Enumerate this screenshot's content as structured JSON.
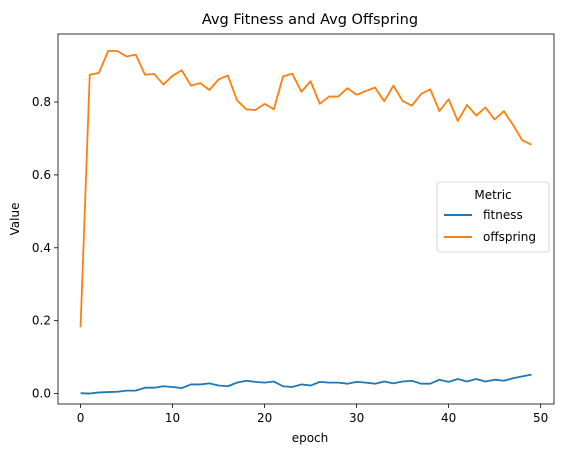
{
  "chart_data": {
    "type": "line",
    "title": "Avg Fitness and Avg Offspring",
    "xlabel": "epoch",
    "ylabel": "Value",
    "xlim": [
      -2.45,
      51.45
    ],
    "ylim": [
      -0.0287,
      0.9867
    ],
    "xticks": [
      0,
      10,
      20,
      30,
      40,
      50
    ],
    "yticks": [
      0.0,
      0.2,
      0.4,
      0.6,
      0.8
    ],
    "ytick_labels": [
      "0.0",
      "0.2",
      "0.4",
      "0.6",
      "0.8"
    ],
    "grid": false,
    "legend": {
      "title": "Metric",
      "placement": "center-right"
    },
    "x": [
      0,
      1,
      2,
      3,
      4,
      5,
      6,
      7,
      8,
      9,
      10,
      11,
      12,
      13,
      14,
      15,
      16,
      17,
      18,
      19,
      20,
      21,
      22,
      23,
      24,
      25,
      26,
      27,
      28,
      29,
      30,
      31,
      32,
      33,
      34,
      35,
      36,
      37,
      38,
      39,
      40,
      41,
      42,
      43,
      44,
      45,
      46,
      47,
      48,
      49
    ],
    "series": [
      {
        "name": "fitness",
        "color": "#1f77b4",
        "values": [
          0.001,
          0.0,
          0.003,
          0.004,
          0.005,
          0.008,
          0.008,
          0.016,
          0.016,
          0.02,
          0.018,
          0.015,
          0.025,
          0.025,
          0.028,
          0.022,
          0.02,
          0.03,
          0.035,
          0.032,
          0.03,
          0.033,
          0.02,
          0.018,
          0.025,
          0.022,
          0.032,
          0.03,
          0.03,
          0.027,
          0.032,
          0.03,
          0.027,
          0.033,
          0.028,
          0.033,
          0.035,
          0.027,
          0.027,
          0.038,
          0.032,
          0.04,
          0.033,
          0.04,
          0.033,
          0.038,
          0.035,
          0.042,
          0.047,
          0.052
        ]
      },
      {
        "name": "offspring",
        "color": "#ff7f0e",
        "values": [
          0.182,
          0.875,
          0.88,
          0.94,
          0.94,
          0.925,
          0.93,
          0.875,
          0.877,
          0.848,
          0.872,
          0.887,
          0.845,
          0.852,
          0.833,
          0.862,
          0.873,
          0.805,
          0.78,
          0.778,
          0.795,
          0.78,
          0.87,
          0.878,
          0.828,
          0.857,
          0.795,
          0.815,
          0.815,
          0.838,
          0.82,
          0.83,
          0.84,
          0.802,
          0.845,
          0.803,
          0.79,
          0.822,
          0.835,
          0.775,
          0.808,
          0.748,
          0.792,
          0.763,
          0.785,
          0.752,
          0.775,
          0.737,
          0.695,
          0.683
        ]
      }
    ]
  }
}
